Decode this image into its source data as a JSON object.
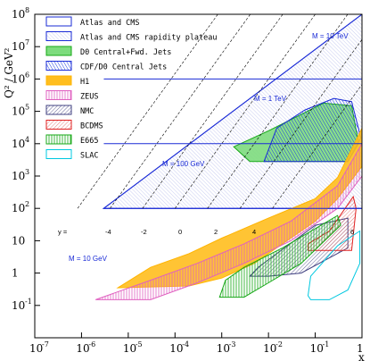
{
  "chart_data": {
    "type": "area",
    "xlabel": "x",
    "ylabel": "Q² / GeV²",
    "xscale": "log",
    "yscale": "log",
    "xlim": [
      1e-07,
      1
    ],
    "ylim": [
      0.01,
      100000000.0
    ],
    "x_ticks": [
      {
        "base": "10",
        "exp": "-7"
      },
      {
        "base": "10",
        "exp": "-6"
      },
      {
        "base": "10",
        "exp": "-5"
      },
      {
        "base": "10",
        "exp": "-4"
      },
      {
        "base": "10",
        "exp": "-3"
      },
      {
        "base": "10",
        "exp": "-2"
      },
      {
        "base": "10",
        "exp": "-1"
      },
      {
        "base": "1",
        "exp": ""
      }
    ],
    "y_ticks": [
      {
        "base": "10",
        "exp": "8"
      },
      {
        "base": "10",
        "exp": "7"
      },
      {
        "base": "10",
        "exp": "6"
      },
      {
        "base": "10",
        "exp": "5"
      },
      {
        "base": "10",
        "exp": "4"
      },
      {
        "base": "10",
        "exp": "3"
      },
      {
        "base": "10",
        "exp": "2"
      },
      {
        "base": "10",
        "exp": ""
      },
      {
        "base": "1",
        "exp": ""
      },
      {
        "base": "10",
        "exp": "-1"
      }
    ],
    "legend_position": "top-center",
    "series": [
      {
        "name": "Atlas and CMS",
        "color": "#1a2bd6",
        "fill": "none",
        "polygon": [
          [
            3e-06,
            100
          ],
          [
            1,
            100000000.0
          ],
          [
            1,
            100
          ]
        ]
      },
      {
        "name": "Atlas and CMS rapidity plateau",
        "color": "#1a2bd6",
        "fill": "hatch-light",
        "polygon": [
          [
            3e-06,
            100
          ],
          [
            1,
            100000000.0
          ],
          [
            1,
            100
          ]
        ]
      },
      {
        "name": "D0 Central+Fwd. Jets",
        "color": "#17a817",
        "fill": "#7ddc7d",
        "polygon": [
          [
            0.0018,
            8000
          ],
          [
            0.01,
            25000
          ],
          [
            0.05,
            80000
          ],
          [
            0.15,
            180000
          ],
          [
            0.6,
            150000
          ],
          [
            0.85,
            10000
          ],
          [
            0.5,
            2800
          ],
          [
            0.004,
            2800
          ]
        ]
      },
      {
        "name": "CDF/D0 Central Jets",
        "color": "#1a2bd6",
        "fill": "hatch-blue",
        "polygon": [
          [
            0.008,
            2800
          ],
          [
            0.015,
            30000
          ],
          [
            0.06,
            110000
          ],
          [
            0.25,
            250000
          ],
          [
            0.6,
            200000
          ],
          [
            0.95,
            15000
          ],
          [
            0.5,
            2800
          ]
        ]
      },
      {
        "name": "H1",
        "color": "#ffb400",
        "fill": "#ffbe1e",
        "polygon": [
          [
            6e-06,
            0.35
          ],
          [
            3e-05,
            1.5
          ],
          [
            0.0002,
            4
          ],
          [
            0.001,
            12
          ],
          [
            0.01,
            50
          ],
          [
            0.1,
            200
          ],
          [
            0.3,
            900
          ],
          [
            1,
            30000
          ],
          [
            1,
            2000
          ],
          [
            0.3,
            200
          ],
          [
            0.1,
            40
          ],
          [
            0.02,
            8
          ],
          [
            0.005,
            2
          ],
          [
            0.001,
            0.7
          ],
          [
            0.0002,
            0.4
          ]
        ]
      },
      {
        "name": "ZEUS",
        "color": "#e060c0",
        "fill": "hatch-pink",
        "polygon": [
          [
            2e-06,
            0.15
          ],
          [
            3e-05,
            0.6
          ],
          [
            0.0003,
            2
          ],
          [
            0.003,
            8
          ],
          [
            0.03,
            40
          ],
          [
            0.3,
            500
          ],
          [
            1,
            10000
          ],
          [
            1,
            1000
          ],
          [
            0.3,
            100
          ],
          [
            0.03,
            10
          ],
          [
            0.003,
            2
          ],
          [
            0.0003,
            0.5
          ],
          [
            3e-05,
            0.15
          ]
        ]
      },
      {
        "name": "NMC",
        "color": "#404080",
        "fill": "hatch-dark",
        "polygon": [
          [
            0.004,
            0.8
          ],
          [
            0.006,
            1.5
          ],
          [
            0.1,
            30
          ],
          [
            0.5,
            50
          ],
          [
            0.5,
            6
          ],
          [
            0.05,
            1
          ],
          [
            0.01,
            0.8
          ]
        ]
      },
      {
        "name": "BCDMS",
        "color": "#e02020",
        "fill": "hatch-red",
        "polygon": [
          [
            0.07,
            8
          ],
          [
            0.2,
            20
          ],
          [
            0.65,
            230
          ],
          [
            0.75,
            100
          ],
          [
            0.6,
            5
          ],
          [
            0.07,
            5
          ]
        ]
      },
      {
        "name": "E665",
        "color": "#17a817",
        "fill": "hatch-green",
        "polygon": [
          [
            0.0009,
            0.18
          ],
          [
            0.0012,
            0.6
          ],
          [
            0.003,
            1.5
          ],
          [
            0.02,
            6
          ],
          [
            0.3,
            60
          ],
          [
            0.35,
            30
          ],
          [
            0.05,
            2
          ],
          [
            0.01,
            0.5
          ],
          [
            0.003,
            0.18
          ]
        ]
      },
      {
        "name": "SLAC",
        "color": "#00c8e0",
        "fill": "none",
        "polygon": [
          [
            0.07,
            0.2
          ],
          [
            0.08,
            0.8
          ],
          [
            0.3,
            7
          ],
          [
            0.9,
            20
          ],
          [
            0.9,
            2
          ],
          [
            0.5,
            0.3
          ],
          [
            0.2,
            0.15
          ],
          [
            0.08,
            0.15
          ]
        ]
      }
    ],
    "mass_lines": [
      {
        "label": "M = 10 TeV",
        "Q2": 100000000.0
      },
      {
        "label": "M = 1 TeV",
        "Q2": 1000000.0
      },
      {
        "label": "M = 100 GeV",
        "Q2": 10000.0
      },
      {
        "label": "M = 10 GeV",
        "Q2": 100
      }
    ],
    "rapidity_lines": [
      {
        "label": "y =",
        "y": -6
      },
      {
        "label": "-4",
        "y": -4
      },
      {
        "label": "-2",
        "y": -2
      },
      {
        "label": "0",
        "y": 0
      },
      {
        "label": "2",
        "y": 2
      },
      {
        "label": "4",
        "y": 4
      },
      {
        "label": "6",
        "y": 6
      }
    ]
  }
}
